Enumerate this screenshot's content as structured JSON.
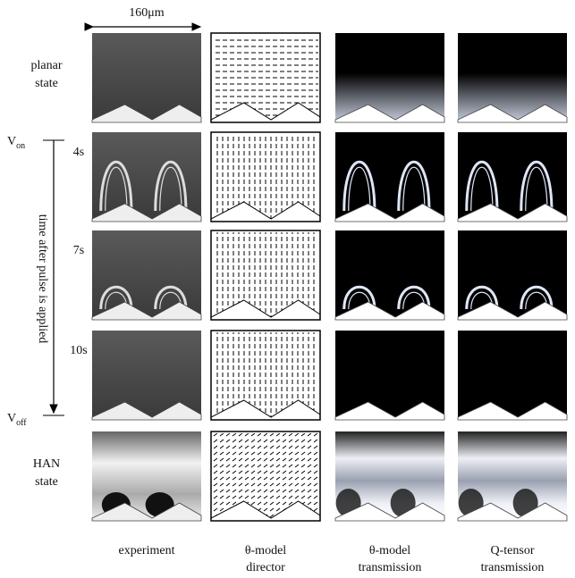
{
  "scale_bar": "160μm",
  "row_labels": [
    [
      "planar",
      "state"
    ],
    [
      "4s"
    ],
    [
      "7s"
    ],
    [
      "10s"
    ],
    [
      "HAN",
      "state"
    ]
  ],
  "voltage_on": {
    "base": "V",
    "sub": "on"
  },
  "voltage_off": {
    "base": "V",
    "sub": "off"
  },
  "time_axis": "time after pulse is applied",
  "column_labels": [
    [
      "experiment"
    ],
    [
      "θ-model",
      "director"
    ],
    [
      "θ-model",
      "transmission"
    ],
    [
      "Q-tensor",
      "transmission"
    ]
  ]
}
